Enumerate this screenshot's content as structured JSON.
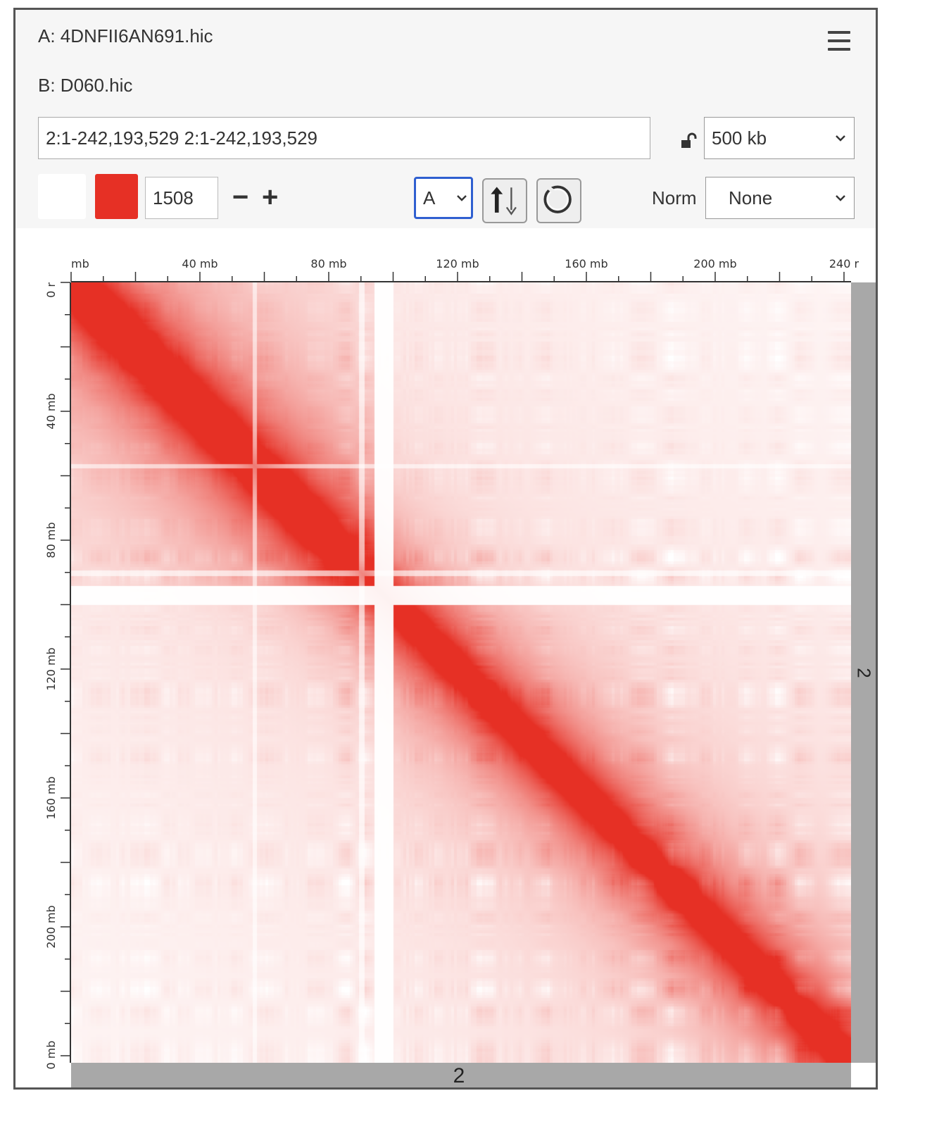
{
  "header": {
    "dataset_a": "A: 4DNFII6AN691.hic",
    "dataset_b": "B: D060.hic"
  },
  "controls": {
    "locus": "2:1-242,193,529 2:1-242,193,529",
    "resolution": "500 kb",
    "color_min": "#ffffff",
    "color_max": "#e63025",
    "color_scale_value": "1508",
    "minus_label": "−",
    "plus_label": "+",
    "display_mode": "A",
    "norm_label": "Norm",
    "norm_value": "None",
    "icons": [
      "menu-icon",
      "lock-open-icon",
      "swap-arrows-icon",
      "refresh-icon"
    ]
  },
  "heatmap": {
    "x_ticks": [
      "mb",
      "40 mb",
      "80 mb",
      "120 mb",
      "160 mb",
      "200 mb",
      "240 r"
    ],
    "y_ticks": [
      "0 r",
      "40 mb",
      "80 mb",
      "120 mb",
      "160 mb",
      "200 mb",
      "0 mb"
    ],
    "chromosome_x": "2",
    "chromosome_y": "2",
    "range_mb": [
      0,
      242.19
    ]
  }
}
